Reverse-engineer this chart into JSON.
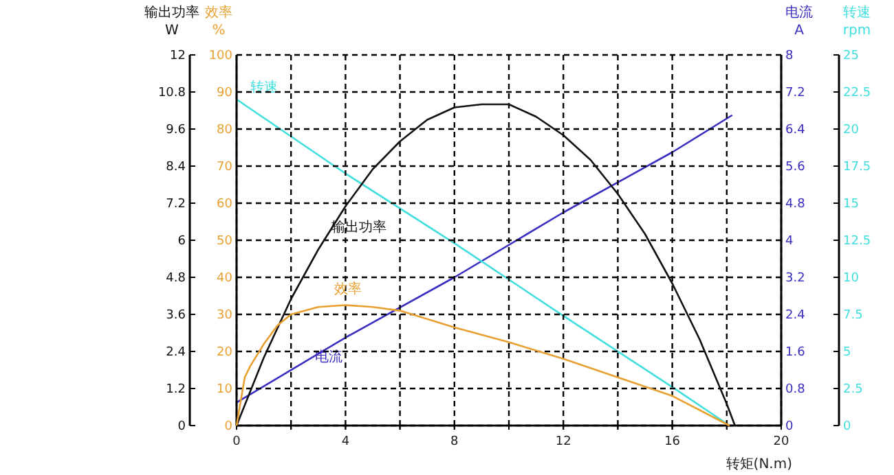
{
  "chart_data": [
    {
      "type": "line",
      "xlabel": "转矩(N.m)",
      "ylabel": "电流\nA",
      "y2label": "转速\nrpm",
      "xlim": [
        0,
        20
      ],
      "xticks": [
        0,
        {
          "value": 2,
          "label": null
        },
        4,
        {
          "value": 6,
          "label": null
        },
        8,
        {
          "value": 10,
          "label": null
        },
        12,
        {
          "value": 14,
          "label": null
        },
        16,
        {
          "value": 18,
          "label": null
        },
        20
      ],
      "ylim": [
        0,
        8
      ],
      "yticks": [
        0,
        0.8,
        1.6,
        2.4,
        3.2,
        4,
        4.8,
        5.6,
        6.4,
        7.2,
        8
      ],
      "y2lim": [
        0,
        25
      ],
      "y2ticks": [
        0,
        2.5,
        5,
        7.5,
        10,
        12.5,
        15,
        17.5,
        20,
        22.5,
        25
      ],
      "series": [
        {
          "name": "电流",
          "color": "#3a2fc0",
          "x": [
            0,
            4,
            8,
            12,
            16,
            18.2
          ],
          "values": [
            0.5,
            1.9,
            3.2,
            4.6,
            5.9,
            6.7
          ]
        },
        {
          "name": "转速",
          "color": "#40dede",
          "axis": "y2",
          "x": [
            0,
            4,
            8,
            12,
            16,
            18.1
          ],
          "values": [
            22,
            17,
            12.3,
            7.4,
            2.6,
            0
          ]
        }
      ]
    },
    {
      "type": "line",
      "ylabel": "效率\n%",
      "y2label": "输出功率\nW",
      "tick_labels": "y",
      "xlim": [
        0,
        20
      ],
      "xticks": [
        0,
        {
          "value": 2,
          "label": null
        },
        4,
        {
          "value": 6,
          "label": null
        },
        8,
        {
          "value": 10,
          "label": null
        },
        12,
        {
          "value": 14,
          "label": null
        },
        16,
        {
          "value": 18,
          "label": null
        },
        20
      ],
      "ylim": [
        0,
        100
      ],
      "yticks": [
        0,
        10,
        20,
        30,
        40,
        50,
        60,
        70,
        80,
        90,
        100
      ],
      "y2lim": [
        0,
        12
      ],
      "y2ticks": [
        0,
        1.2,
        2.4,
        3.6,
        4.8,
        6,
        7.2,
        8.4,
        9.6,
        10.8,
        12
      ],
      "grid": true,
      "series": [
        {
          "name": "输出功率",
          "color": "#111111",
          "axis": "y2",
          "x": [
            0,
            1,
            2,
            3,
            4,
            5,
            6,
            7,
            8,
            9,
            10,
            11,
            12,
            13,
            14,
            15,
            16,
            17,
            18,
            18.3
          ],
          "values": [
            0,
            2.2,
            4.1,
            5.7,
            7.1,
            8.3,
            9.2,
            9.9,
            10.3,
            10.4,
            10.4,
            10,
            9.4,
            8.6,
            7.5,
            6.2,
            4.6,
            2.8,
            0.7,
            0
          ]
        },
        {
          "name": "效率",
          "color": "#e8a030",
          "x": [
            0,
            0.3,
            0.5,
            1,
            1.5,
            2,
            3,
            4,
            5,
            6,
            8,
            10,
            12,
            14,
            16,
            18.1
          ],
          "values": [
            0,
            13,
            16,
            22,
            27,
            30,
            32,
            32.5,
            32,
            31,
            26.5,
            22.5,
            18,
            13,
            8,
            0
          ]
        }
      ]
    }
  ]
}
